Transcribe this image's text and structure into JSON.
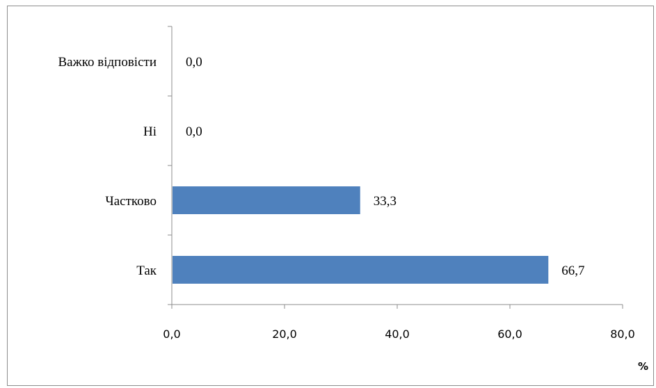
{
  "chart_data": {
    "type": "bar",
    "orientation": "horizontal",
    "categories": [
      "Так",
      "Частково",
      "Ні",
      "Важко відповісти"
    ],
    "values": [
      66.7,
      33.3,
      0.0,
      0.0
    ],
    "data_labels": [
      "66,7",
      "33,3",
      "0,0",
      "0,0"
    ],
    "xlabel": "%",
    "xlim": [
      0,
      80
    ],
    "x_ticks": [
      "0,0",
      "20,0",
      "40,0",
      "60,0",
      "80,0"
    ],
    "grid": false,
    "legend": "none",
    "bar_color": "#4f81bd"
  }
}
